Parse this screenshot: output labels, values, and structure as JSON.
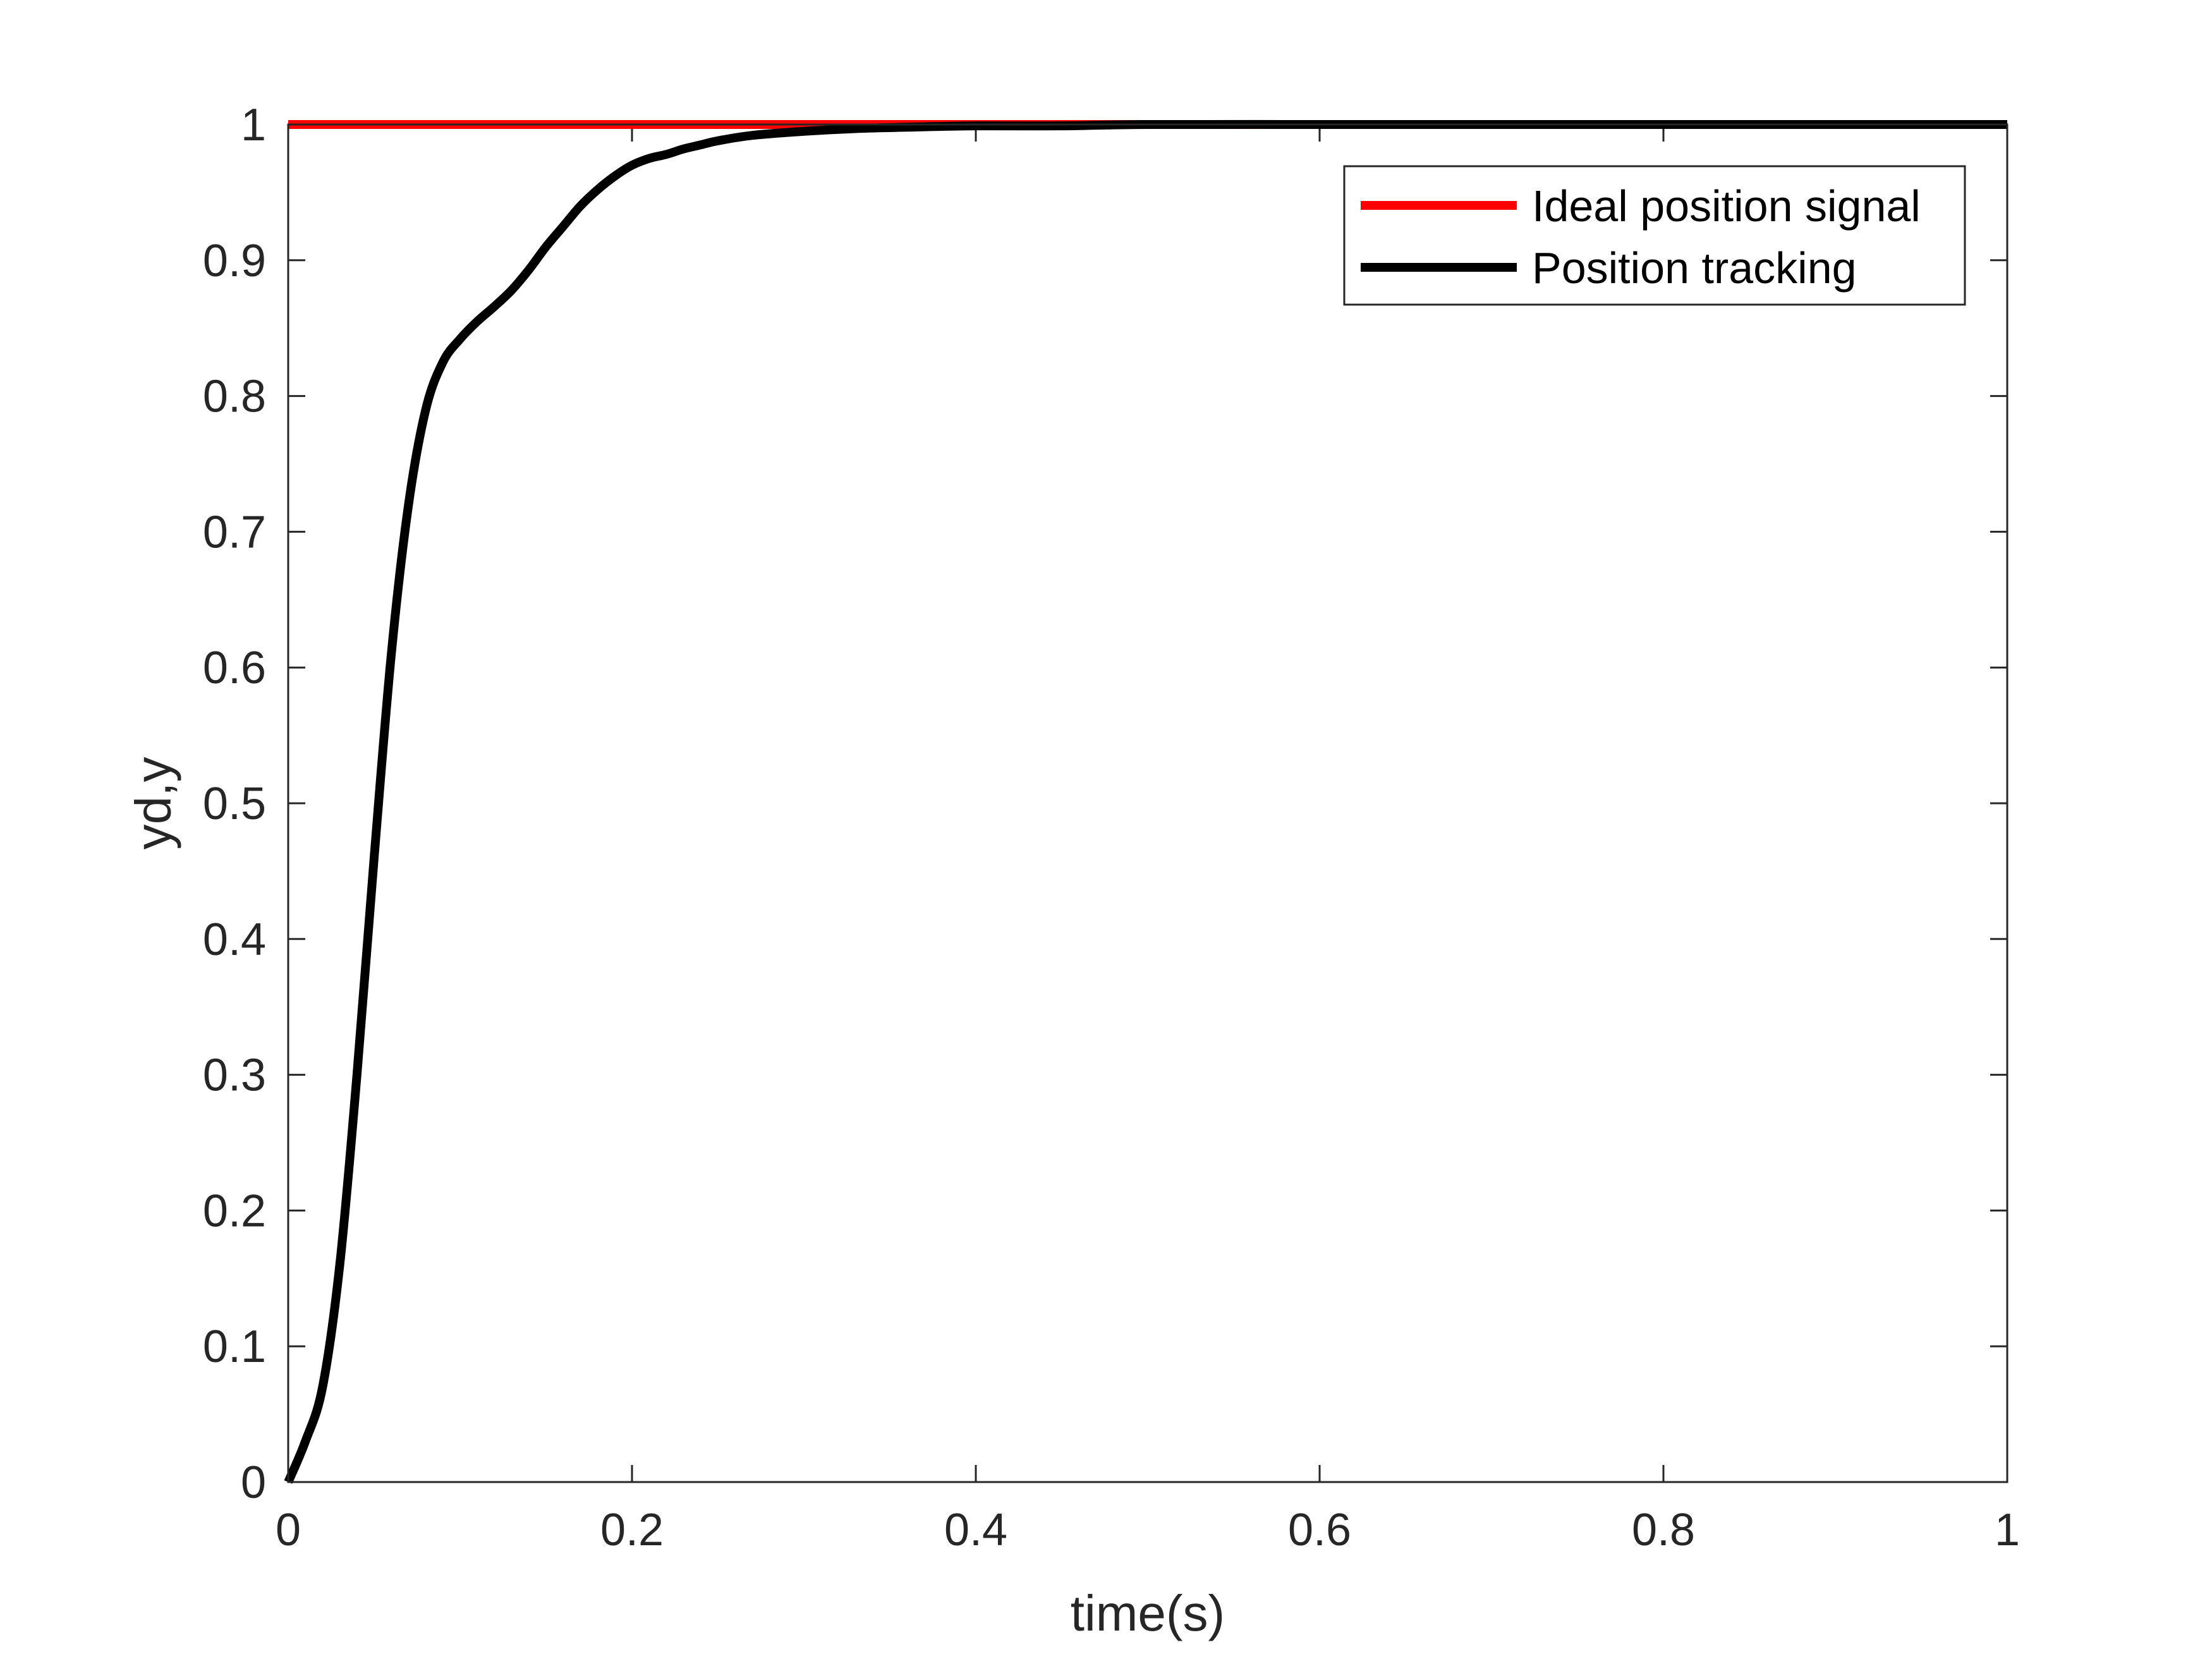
{
  "chart_data": {
    "type": "line",
    "title": "",
    "xlabel": "time(s)",
    "ylabel": "yd,y",
    "xlim": [
      0,
      1
    ],
    "ylim": [
      0,
      1
    ],
    "xticks": [
      0,
      0.2,
      0.4,
      0.6,
      0.8,
      1
    ],
    "xtick_labels": [
      "0",
      "0.2",
      "0.4",
      "0.6",
      "0.8",
      "1"
    ],
    "yticks": [
      0,
      0.1,
      0.2,
      0.3,
      0.4,
      0.5,
      0.6,
      0.7,
      0.8,
      0.9,
      1
    ],
    "ytick_labels": [
      "0",
      "0.1",
      "0.2",
      "0.3",
      "0.4",
      "0.5",
      "0.6",
      "0.7",
      "0.8",
      "0.9",
      "1"
    ],
    "grid": false,
    "legend_position": "top-right",
    "series": [
      {
        "name": "Ideal position signal",
        "color": "#ff0000",
        "x": [
          0,
          1
        ],
        "y": [
          1,
          1
        ]
      },
      {
        "name": "Position tracking",
        "color": "#000000",
        "x": [
          0,
          0.01,
          0.02,
          0.03,
          0.04,
          0.05,
          0.06,
          0.07,
          0.08,
          0.09,
          0.1,
          0.11,
          0.12,
          0.13,
          0.14,
          0.15,
          0.16,
          0.17,
          0.18,
          0.19,
          0.2,
          0.21,
          0.22,
          0.23,
          0.24,
          0.25,
          0.27,
          0.3,
          0.33,
          0.36,
          0.4,
          0.45,
          0.5,
          0.6,
          0.7,
          0.8,
          0.9,
          1.0
        ],
        "y": [
          0,
          0.03,
          0.07,
          0.16,
          0.3,
          0.46,
          0.61,
          0.72,
          0.79,
          0.825,
          0.842,
          0.855,
          0.866,
          0.878,
          0.893,
          0.91,
          0.925,
          0.94,
          0.952,
          0.962,
          0.97,
          0.975,
          0.978,
          0.982,
          0.985,
          0.988,
          0.992,
          0.995,
          0.997,
          0.998,
          0.999,
          0.999,
          1.0,
          1.0,
          1.0,
          1.0,
          1.0,
          1.0
        ]
      }
    ]
  }
}
